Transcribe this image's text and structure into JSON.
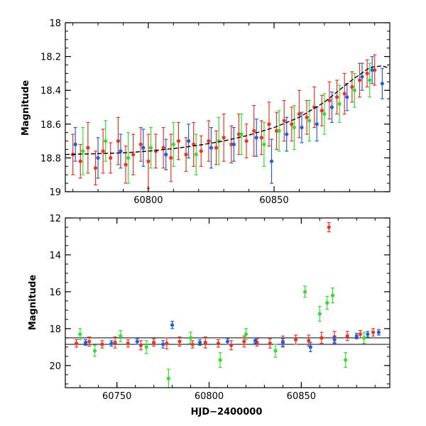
{
  "chart_data": [
    {
      "type": "scatter",
      "panel": "top",
      "title": "",
      "xlabel": "",
      "ylabel": "Magnitude",
      "xlim": [
        60767,
        60896
      ],
      "ylim": [
        19.0,
        18.0
      ],
      "y_inverted": true,
      "xticks": [
        60800,
        60850
      ],
      "yticks": [
        18,
        18.2,
        18.4,
        18.6,
        18.8,
        19
      ],
      "ytick_labels": [
        "18",
        "18.2",
        "18.4",
        "18.6",
        "18.8",
        "19"
      ],
      "xtick_labels": [
        "60800",
        "60850"
      ],
      "grid": false,
      "legend": "none",
      "error_bars": true,
      "series": [
        {
          "color": "#ee3322",
          "x": [
            60770,
            60773,
            60776,
            60779,
            60782,
            60785,
            60788,
            60791,
            60794,
            60797,
            60800,
            60803,
            60806,
            60809,
            60812,
            60815,
            60818,
            60821,
            60824,
            60827,
            60830,
            60833,
            60836,
            60839,
            60842,
            60845,
            60848,
            60851,
            60854,
            60857,
            60860,
            60863,
            60866,
            60869,
            60872,
            60875,
            60878,
            60881,
            60884,
            60887,
            60890
          ],
          "y": [
            18.78,
            18.82,
            18.74,
            18.86,
            18.76,
            18.8,
            18.7,
            18.84,
            18.78,
            18.72,
            18.82,
            18.76,
            18.74,
            18.8,
            18.7,
            18.78,
            18.72,
            18.76,
            18.7,
            18.74,
            18.68,
            18.72,
            18.66,
            18.7,
            18.64,
            18.68,
            18.6,
            18.64,
            18.58,
            18.6,
            18.54,
            18.56,
            18.5,
            18.52,
            18.46,
            18.44,
            18.42,
            18.38,
            18.34,
            18.3,
            18.28
          ],
          "err": [
            0.12,
            0.1,
            0.15,
            0.1,
            0.13,
            0.09,
            0.14,
            0.11,
            0.12,
            0.1,
            0.16,
            0.1,
            0.12,
            0.14,
            0.11,
            0.1,
            0.13,
            0.09,
            0.12,
            0.1,
            0.14,
            0.11,
            0.12,
            0.1,
            0.15,
            0.1,
            0.13,
            0.11,
            0.12,
            0.1,
            0.14,
            0.1,
            0.12,
            0.09,
            0.11,
            0.1,
            0.12,
            0.09,
            0.1,
            0.08,
            0.09
          ]
        },
        {
          "color": "#1f5fe0",
          "x": [
            60771,
            60780,
            60789,
            60798,
            60807,
            60816,
            60825,
            60834,
            60843,
            60849,
            60855,
            60861,
            60867,
            60873,
            60879,
            60885,
            60889,
            60893
          ],
          "y": [
            18.72,
            18.8,
            18.76,
            18.74,
            18.78,
            18.7,
            18.74,
            18.72,
            18.68,
            18.82,
            18.66,
            18.62,
            18.6,
            18.5,
            18.44,
            18.32,
            18.28,
            18.36
          ],
          "err": [
            0.1,
            0.12,
            0.1,
            0.11,
            0.09,
            0.1,
            0.12,
            0.1,
            0.11,
            0.13,
            0.1,
            0.09,
            0.1,
            0.09,
            0.08,
            0.08,
            0.08,
            0.09
          ]
        },
        {
          "color": "#33dd33",
          "x": [
            60774,
            60783,
            60792,
            60801,
            60810,
            60819,
            60828,
            60837,
            60846,
            60852,
            60858,
            60864,
            60870,
            60876,
            60882,
            60888
          ],
          "y": [
            18.76,
            18.7,
            18.8,
            18.74,
            18.72,
            18.78,
            18.7,
            18.66,
            18.72,
            18.64,
            18.62,
            18.58,
            18.54,
            18.48,
            18.4,
            18.34
          ],
          "err": [
            0.14,
            0.12,
            0.15,
            0.12,
            0.13,
            0.12,
            0.14,
            0.12,
            0.13,
            0.12,
            0.13,
            0.12,
            0.12,
            0.11,
            0.1,
            0.1
          ]
        }
      ],
      "model_curve": {
        "style": "dashed",
        "color": "#000000",
        "x": [
          60767,
          60780,
          60790,
          60800,
          60810,
          60820,
          60830,
          60840,
          60850,
          60860,
          60870,
          60880,
          60888,
          60893,
          60896
        ],
        "y": [
          18.78,
          18.775,
          18.77,
          18.76,
          18.745,
          18.725,
          18.7,
          18.665,
          18.62,
          18.56,
          18.47,
          18.35,
          18.265,
          18.255,
          18.27
        ]
      }
    },
    {
      "type": "scatter",
      "panel": "bottom",
      "title": "",
      "xlabel": "HJD−2400000",
      "ylabel": "Magnitude",
      "xlim": [
        60722,
        60898
      ],
      "ylim": [
        21.2,
        12.0
      ],
      "y_inverted": true,
      "xticks": [
        60750,
        60800,
        60850
      ],
      "xtick_labels": [
        "60750",
        "60800",
        "60850"
      ],
      "yticks": [
        12,
        14,
        16,
        18,
        20
      ],
      "ytick_labels": [
        "12",
        "14",
        "16",
        "18",
        "20"
      ],
      "grid": false,
      "legend": "none",
      "error_bars": true,
      "reference_lines": [
        18.5,
        18.85
      ],
      "series": [
        {
          "color": "#ee3322",
          "x": [
            60728,
            60735,
            60742,
            60749,
            60756,
            60763,
            60770,
            60777,
            60784,
            60791,
            60798,
            60805,
            60812,
            60819,
            60826,
            60833,
            60840,
            60847,
            60854,
            60861,
            60865,
            60868,
            60875,
            60882,
            60889
          ],
          "y": [
            18.8,
            18.7,
            18.85,
            18.75,
            18.8,
            18.9,
            18.75,
            18.8,
            18.7,
            18.85,
            18.75,
            18.8,
            18.9,
            18.7,
            18.75,
            18.8,
            18.7,
            18.6,
            18.65,
            18.5,
            12.5,
            18.45,
            18.4,
            18.3,
            18.2
          ],
          "err": [
            0.2,
            0.25,
            0.2,
            0.3,
            0.2,
            0.25,
            0.2,
            0.3,
            0.25,
            0.2,
            0.3,
            0.2,
            0.25,
            0.3,
            0.2,
            0.25,
            0.3,
            0.25,
            0.3,
            0.3,
            0.25,
            0.3,
            0.25,
            0.2,
            0.2
          ]
        },
        {
          "color": "#1f5fe0",
          "x": [
            60733,
            60747,
            60761,
            60775,
            60780,
            60795,
            60810,
            60825,
            60840,
            60855,
            60868,
            60880,
            60886,
            60892
          ],
          "y": [
            18.75,
            18.8,
            18.7,
            18.85,
            17.8,
            18.75,
            18.7,
            18.65,
            18.75,
            19.0,
            18.6,
            18.4,
            18.3,
            18.2
          ],
          "err": [
            0.15,
            0.15,
            0.15,
            0.2,
            0.2,
            0.15,
            0.15,
            0.15,
            0.2,
            0.25,
            0.2,
            0.15,
            0.15,
            0.15
          ]
        },
        {
          "color": "#33dd33",
          "x": [
            60730,
            60738,
            60752,
            60766,
            60778,
            60790,
            60806,
            60820,
            60836,
            60852,
            60860,
            60864,
            60867,
            60874,
            60884
          ],
          "y": [
            18.3,
            19.2,
            18.4,
            19.0,
            20.7,
            18.5,
            19.7,
            18.3,
            19.2,
            16.0,
            17.2,
            16.6,
            16.2,
            19.7,
            18.5
          ],
          "err": [
            0.3,
            0.3,
            0.3,
            0.35,
            0.5,
            0.3,
            0.4,
            0.3,
            0.35,
            0.3,
            0.4,
            0.35,
            0.4,
            0.4,
            0.3
          ]
        }
      ]
    }
  ]
}
